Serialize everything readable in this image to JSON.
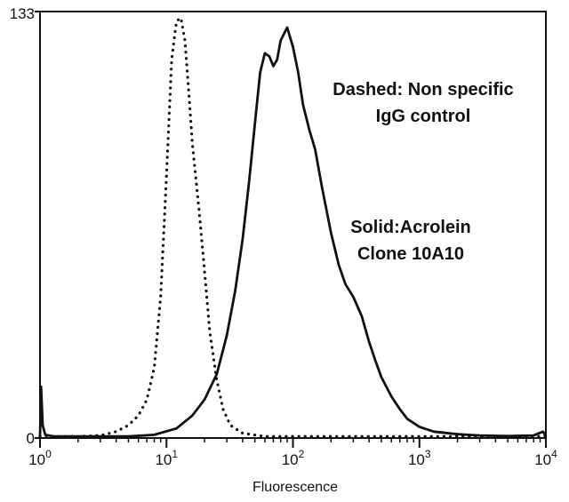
{
  "chart_data": {
    "type": "line",
    "title": "",
    "xlabel": "Fluorescence",
    "ylabel": "",
    "x_scale": "log",
    "xlim": [
      1,
      10000
    ],
    "ylim": [
      0,
      133
    ],
    "x_ticks": [
      {
        "value": 1,
        "base": "10",
        "exp": "0"
      },
      {
        "value": 10,
        "base": "10",
        "exp": "1"
      },
      {
        "value": 100,
        "base": "10",
        "exp": "2"
      },
      {
        "value": 1000,
        "base": "10",
        "exp": "3"
      },
      {
        "value": 10000,
        "base": "10",
        "exp": "4"
      }
    ],
    "y_ticks": [
      {
        "value": 0,
        "label": "0"
      },
      {
        "value": 133,
        "label": "133"
      }
    ],
    "grid": false,
    "annotations": [
      {
        "id": "dashed",
        "lines": [
          "Dashed: Non specific",
          "IgG control"
        ]
      },
      {
        "id": "solid",
        "lines": [
          "Solid:Acrolein",
          "Clone 10A10"
        ]
      }
    ],
    "series": [
      {
        "style": "dotted",
        "color": "#111111",
        "points": [
          [
            1.0,
            0.5
          ],
          [
            2.0,
            0.5
          ],
          [
            3.0,
            0.8
          ],
          [
            4.0,
            2
          ],
          [
            5.0,
            4
          ],
          [
            6.0,
            7
          ],
          [
            7.0,
            12
          ],
          [
            8.0,
            22
          ],
          [
            9.0,
            44
          ],
          [
            10.0,
            82
          ],
          [
            11.0,
            118
          ],
          [
            12.0,
            130
          ],
          [
            13.0,
            131
          ],
          [
            14.0,
            124
          ],
          [
            15.0,
            108
          ],
          [
            16.0,
            92
          ],
          [
            18.0,
            72
          ],
          [
            20.0,
            52
          ],
          [
            22.0,
            33
          ],
          [
            25.0,
            18
          ],
          [
            28.0,
            9
          ],
          [
            32.0,
            4
          ],
          [
            40.0,
            1.5
          ],
          [
            60.0,
            0.5
          ],
          [
            100.0,
            0.5
          ],
          [
            1000.0,
            0.5
          ],
          [
            10000.0,
            0.5
          ]
        ]
      },
      {
        "style": "solid",
        "color": "#111111",
        "points": [
          [
            1.0,
            0
          ],
          [
            1.02,
            16
          ],
          [
            1.05,
            4
          ],
          [
            1.1,
            1
          ],
          [
            1.3,
            0.5
          ],
          [
            2.0,
            0.5
          ],
          [
            5.0,
            0.5
          ],
          [
            8.0,
            1
          ],
          [
            12.0,
            3
          ],
          [
            16.0,
            7
          ],
          [
            20.0,
            12
          ],
          [
            25.0,
            20
          ],
          [
            30.0,
            32
          ],
          [
            35.0,
            46
          ],
          [
            40.0,
            62
          ],
          [
            45.0,
            80
          ],
          [
            50.0,
            98
          ],
          [
            55.0,
            114
          ],
          [
            60.0,
            120
          ],
          [
            65.0,
            119
          ],
          [
            70.0,
            116
          ],
          [
            75.0,
            118
          ],
          [
            80.0,
            124
          ],
          [
            90.0,
            128
          ],
          [
            100.0,
            122
          ],
          [
            110.0,
            114
          ],
          [
            120.0,
            104
          ],
          [
            135.0,
            96
          ],
          [
            150.0,
            90
          ],
          [
            170.0,
            78
          ],
          [
            200.0,
            64
          ],
          [
            230.0,
            54
          ],
          [
            260.0,
            48
          ],
          [
            300.0,
            44
          ],
          [
            350.0,
            38
          ],
          [
            400.0,
            30
          ],
          [
            450.0,
            24
          ],
          [
            500.0,
            19
          ],
          [
            600.0,
            13
          ],
          [
            700.0,
            9
          ],
          [
            800.0,
            6
          ],
          [
            1000.0,
            3.5
          ],
          [
            1300.0,
            2
          ],
          [
            2000.0,
            1.2
          ],
          [
            3000.0,
            0.8
          ],
          [
            5000.0,
            0.6
          ],
          [
            8000.0,
            0.8
          ],
          [
            9500.0,
            2
          ],
          [
            10000.0,
            0.5
          ]
        ]
      }
    ]
  }
}
